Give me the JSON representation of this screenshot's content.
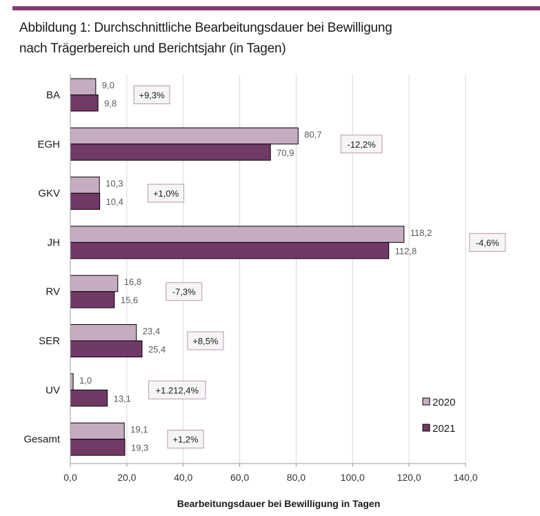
{
  "header": {
    "title_line1": "Abbildung 1: Durchschnittliche Bearbeitungsdauer bei Bewilligung",
    "title_line2": "nach Trägerbereich und Berichtsjahr (in Tagen)"
  },
  "colors": {
    "accent": "#853a6a",
    "series_2020": "#c5adc1",
    "series_2021": "#713966",
    "change_box_border": "#b896b2",
    "change_box_fill": "#f5f5f5",
    "grid": "#d9d9d9"
  },
  "chart_data": {
    "type": "bar",
    "orientation": "horizontal",
    "title": "Abbildung 1: Durchschnittliche Bearbeitungsdauer bei Bewilligung nach Trägerbereich und Berichtsjahr (in Tagen)",
    "xlabel": "Bearbeitungsdauer bei Bewilligung in Tagen",
    "ylabel": "",
    "xlim": [
      0,
      140
    ],
    "xticks": [
      0,
      20,
      40,
      60,
      80,
      100,
      120,
      140
    ],
    "xtick_labels": [
      "0,0",
      "20,0",
      "40,0",
      "60,0",
      "80,0",
      "100,0",
      "120,0",
      "140,0"
    ],
    "grid": "vertical",
    "legend_position": "bottom-right",
    "categories": [
      "BA",
      "EGH",
      "GKV",
      "JH",
      "RV",
      "SER",
      "UV",
      "Gesamt"
    ],
    "series": [
      {
        "name": "2020",
        "values": [
          9.0,
          80.7,
          10.3,
          118.2,
          16.8,
          23.4,
          1.0,
          19.1
        ],
        "labels": [
          "9,0",
          "80,7",
          "10,3",
          "118,2",
          "16,8",
          "23,4",
          "1,0",
          "19,1"
        ]
      },
      {
        "name": "2021",
        "values": [
          9.8,
          70.9,
          10.4,
          112.8,
          15.6,
          25.4,
          13.1,
          19.3
        ],
        "labels": [
          "9,8",
          "70,9",
          "10,4",
          "112,8",
          "15,6",
          "25,4",
          "13,1",
          "19,3"
        ]
      }
    ],
    "annotations": [
      "+9,3%",
      "-12,2%",
      "+1,0%",
      "-4,6%",
      "-7,3%",
      "+8,5%",
      "+1.212,4%",
      "+1,2%"
    ]
  }
}
